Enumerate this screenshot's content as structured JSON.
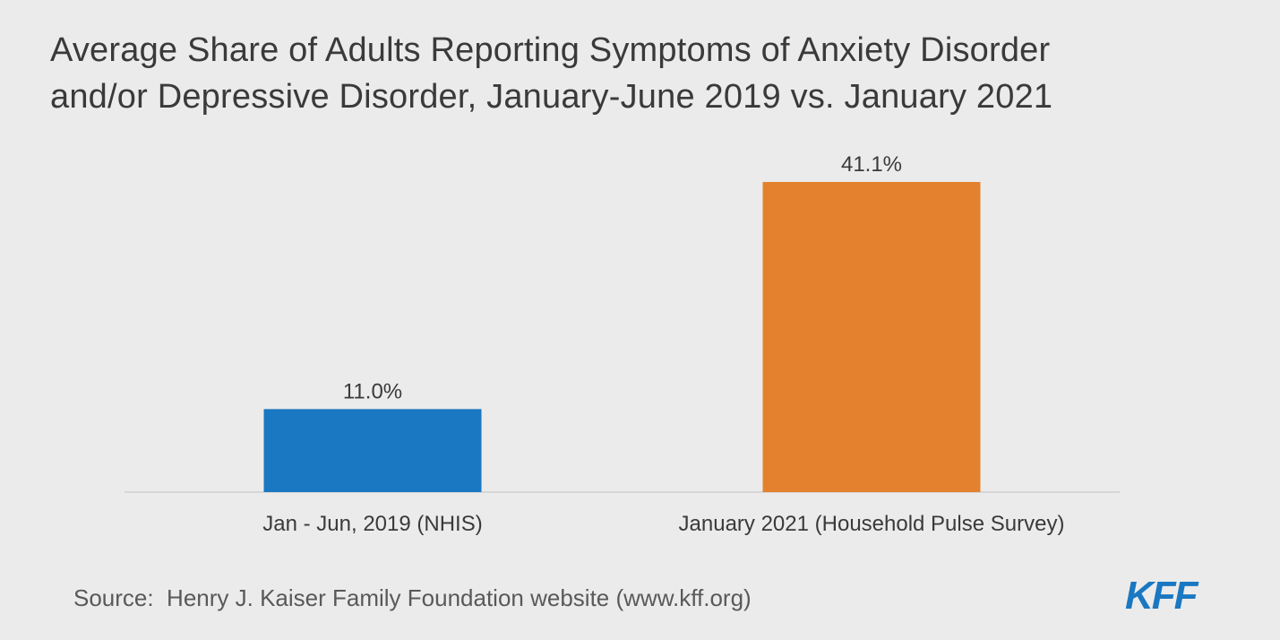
{
  "chart_data": {
    "type": "bar",
    "title": "Average Share of Adults Reporting Symptoms of Anxiety Disorder\nand/or Depressive Disorder, January-June 2019 vs. January 2021",
    "categories": [
      "Jan - Jun, 2019 (NHIS)",
      "January 2021 (Household Pulse Survey)"
    ],
    "values": [
      11.0,
      41.1
    ],
    "data_labels": [
      "11.0%",
      "41.1%"
    ],
    "colors": [
      "#1a77c2",
      "#e3812f"
    ],
    "ylim": [
      0,
      41.1
    ],
    "grid": false,
    "legend": "none"
  },
  "source": "Source:  Henry J. Kaiser Family Foundation website (www.kff.org)",
  "logo_text": "KFF"
}
